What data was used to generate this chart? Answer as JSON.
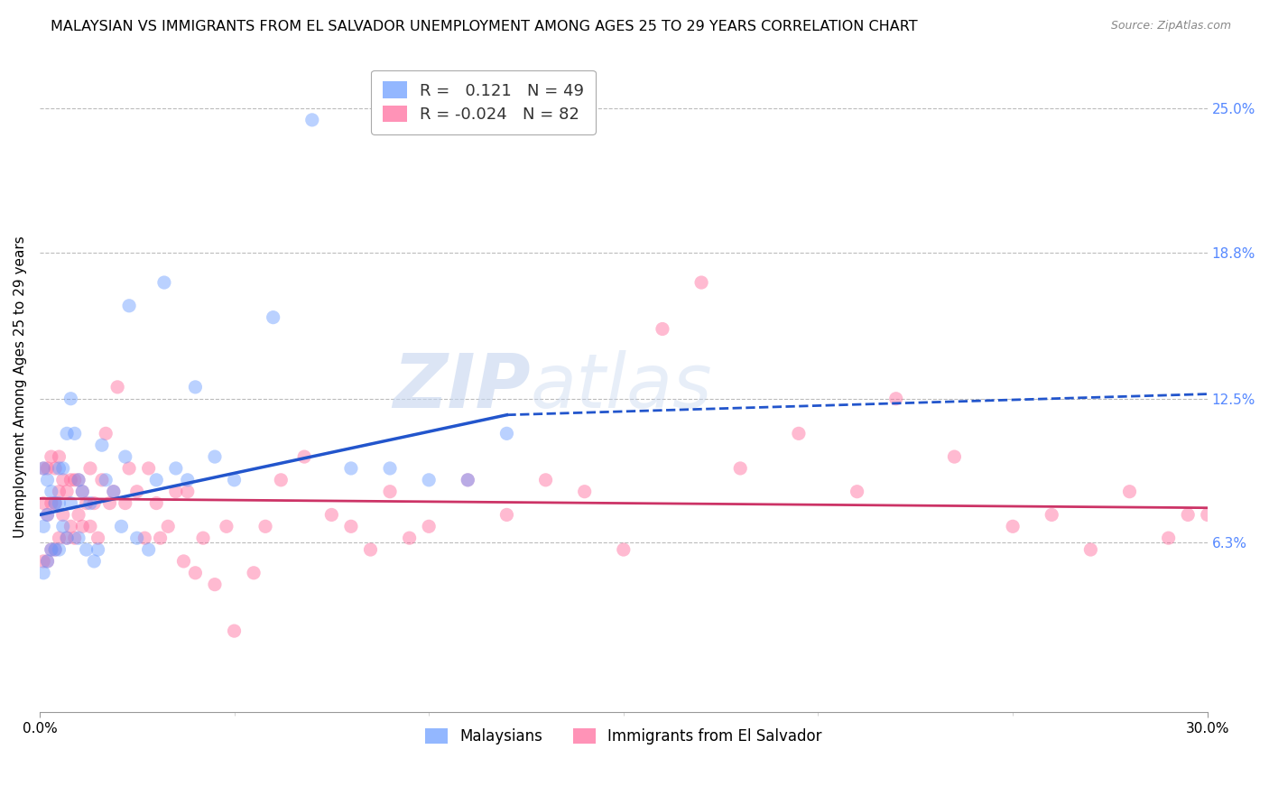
{
  "title": "MALAYSIAN VS IMMIGRANTS FROM EL SALVADOR UNEMPLOYMENT AMONG AGES 25 TO 29 YEARS CORRELATION CHART",
  "source": "Source: ZipAtlas.com",
  "ylabel_label": "Unemployment Among Ages 25 to 29 years",
  "right_yticks": [
    "25.0%",
    "18.8%",
    "12.5%",
    "6.3%"
  ],
  "right_ytick_vals": [
    0.25,
    0.188,
    0.125,
    0.063
  ],
  "xmin": 0.0,
  "xmax": 0.3,
  "ymin": -0.01,
  "ymax": 0.27,
  "r_malaysian": 0.121,
  "n_malaysian": 49,
  "r_salvador": -0.024,
  "n_salvador": 82,
  "color_malaysian": "#6699ff",
  "color_salvador": "#ff6699",
  "watermark_zip": "ZIP",
  "watermark_atlas": "atlas",
  "legend_label_malaysian": "Malaysians",
  "legend_label_salvador": "Immigrants from El Salvador",
  "malaysian_x": [
    0.001,
    0.001,
    0.001,
    0.002,
    0.002,
    0.002,
    0.003,
    0.003,
    0.004,
    0.004,
    0.005,
    0.005,
    0.005,
    0.006,
    0.006,
    0.007,
    0.007,
    0.008,
    0.008,
    0.009,
    0.01,
    0.01,
    0.011,
    0.012,
    0.013,
    0.014,
    0.015,
    0.016,
    0.017,
    0.019,
    0.021,
    0.022,
    0.023,
    0.025,
    0.028,
    0.03,
    0.032,
    0.035,
    0.038,
    0.04,
    0.045,
    0.05,
    0.06,
    0.07,
    0.08,
    0.09,
    0.1,
    0.11,
    0.12
  ],
  "malaysian_y": [
    0.05,
    0.07,
    0.095,
    0.055,
    0.075,
    0.09,
    0.06,
    0.085,
    0.06,
    0.08,
    0.06,
    0.08,
    0.095,
    0.07,
    0.095,
    0.065,
    0.11,
    0.08,
    0.125,
    0.11,
    0.065,
    0.09,
    0.085,
    0.06,
    0.08,
    0.055,
    0.06,
    0.105,
    0.09,
    0.085,
    0.07,
    0.1,
    0.165,
    0.065,
    0.06,
    0.09,
    0.175,
    0.095,
    0.09,
    0.13,
    0.1,
    0.09,
    0.16,
    0.245,
    0.095,
    0.095,
    0.09,
    0.09,
    0.11
  ],
  "salvador_x": [
    0.001,
    0.001,
    0.001,
    0.002,
    0.002,
    0.002,
    0.003,
    0.003,
    0.003,
    0.004,
    0.004,
    0.004,
    0.005,
    0.005,
    0.005,
    0.006,
    0.006,
    0.007,
    0.007,
    0.008,
    0.008,
    0.009,
    0.009,
    0.01,
    0.01,
    0.011,
    0.011,
    0.012,
    0.013,
    0.013,
    0.014,
    0.015,
    0.016,
    0.017,
    0.018,
    0.019,
    0.02,
    0.022,
    0.023,
    0.025,
    0.027,
    0.028,
    0.03,
    0.031,
    0.033,
    0.035,
    0.037,
    0.038,
    0.04,
    0.042,
    0.045,
    0.048,
    0.05,
    0.055,
    0.058,
    0.062,
    0.068,
    0.075,
    0.08,
    0.085,
    0.09,
    0.095,
    0.1,
    0.11,
    0.12,
    0.13,
    0.14,
    0.15,
    0.16,
    0.17,
    0.18,
    0.195,
    0.21,
    0.22,
    0.235,
    0.25,
    0.26,
    0.27,
    0.28,
    0.29,
    0.295,
    0.3
  ],
  "salvador_y": [
    0.055,
    0.08,
    0.095,
    0.055,
    0.075,
    0.095,
    0.06,
    0.08,
    0.1,
    0.06,
    0.08,
    0.095,
    0.065,
    0.085,
    0.1,
    0.075,
    0.09,
    0.065,
    0.085,
    0.07,
    0.09,
    0.065,
    0.09,
    0.075,
    0.09,
    0.07,
    0.085,
    0.08,
    0.07,
    0.095,
    0.08,
    0.065,
    0.09,
    0.11,
    0.08,
    0.085,
    0.13,
    0.08,
    0.095,
    0.085,
    0.065,
    0.095,
    0.08,
    0.065,
    0.07,
    0.085,
    0.055,
    0.085,
    0.05,
    0.065,
    0.045,
    0.07,
    0.025,
    0.05,
    0.07,
    0.09,
    0.1,
    0.075,
    0.07,
    0.06,
    0.085,
    0.065,
    0.07,
    0.09,
    0.075,
    0.09,
    0.085,
    0.06,
    0.155,
    0.175,
    0.095,
    0.11,
    0.085,
    0.125,
    0.1,
    0.07,
    0.075,
    0.06,
    0.085,
    0.065,
    0.075,
    0.075
  ],
  "blue_line_start_x": 0.0,
  "blue_line_start_y": 0.075,
  "blue_line_solid_end_x": 0.12,
  "blue_line_solid_end_y": 0.118,
  "blue_line_dash_end_x": 0.3,
  "blue_line_dash_end_y": 0.127,
  "pink_line_start_x": 0.0,
  "pink_line_start_y": 0.082,
  "pink_line_end_x": 0.3,
  "pink_line_end_y": 0.078
}
